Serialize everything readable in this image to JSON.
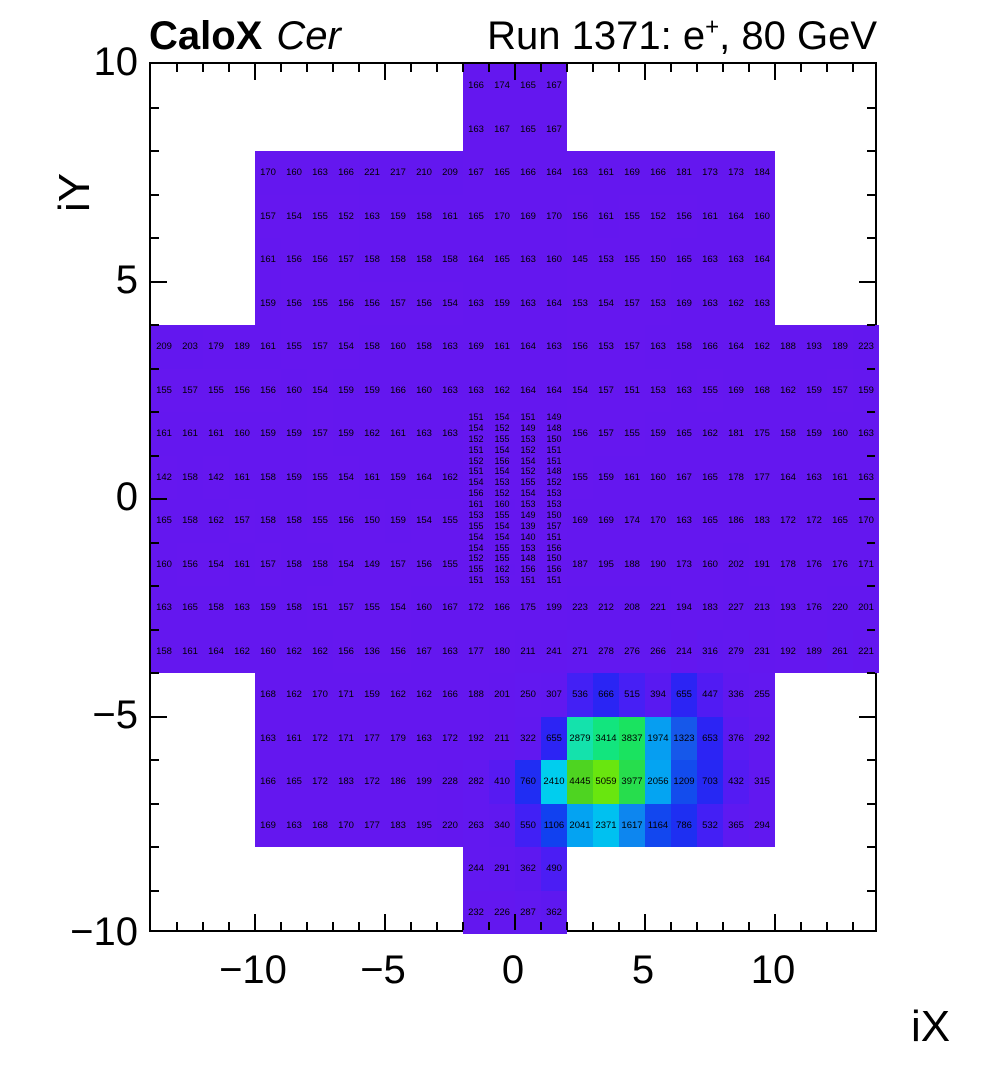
{
  "header": {
    "title_bold": "CaloX",
    "title_italic": "Cer",
    "run_label_prefix": "Run 1371: e",
    "run_label_sup": "+",
    "run_label_suffix": ", 80 GeV"
  },
  "axes": {
    "x_label": "iX",
    "y_label": "iY",
    "x_ticks": [
      {
        "v": -10,
        "t": "−10"
      },
      {
        "v": -5,
        "t": "−5"
      },
      {
        "v": 0,
        "t": "0"
      },
      {
        "v": 5,
        "t": "5"
      },
      {
        "v": 10,
        "t": "10"
      }
    ],
    "y_ticks": [
      {
        "v": 10,
        "t": "10"
      },
      {
        "v": 5,
        "t": "5"
      },
      {
        "v": 0,
        "t": "0"
      },
      {
        "v": -5,
        "t": "−5"
      },
      {
        "v": -10,
        "t": "−10"
      }
    ]
  },
  "chart_data": {
    "type": "heatmap",
    "title": "CaloX Cer — Run 1371: e+, 80 GeV",
    "xlabel": "iX",
    "ylabel": "iY",
    "xlim": [
      -14,
      14
    ],
    "ylim": [
      -10,
      10
    ],
    "grid": false,
    "z_min": 136,
    "z_max": 5059,
    "palette": [
      [
        136,
        "#6517ef"
      ],
      [
        350,
        "#6018f0"
      ],
      [
        470,
        "#4e1cf4"
      ],
      [
        560,
        "#3f21f5"
      ],
      [
        660,
        "#2b24f4"
      ],
      [
        800,
        "#1c30f2"
      ],
      [
        1110,
        "#1141f0"
      ],
      [
        1330,
        "#1659ea"
      ],
      [
        1620,
        "#0d86ef"
      ],
      [
        2060,
        "#04a4f2"
      ],
      [
        2380,
        "#00c2f0"
      ],
      [
        2430,
        "#00d6ec"
      ],
      [
        2890,
        "#14e2aa"
      ],
      [
        3420,
        "#12e57e"
      ],
      [
        3840,
        "#1ae360"
      ],
      [
        3980,
        "#27dd4d"
      ],
      [
        4450,
        "#4ed421"
      ],
      [
        5059,
        "#69e60f"
      ]
    ],
    "coarse_segments": [
      {
        "y": 9,
        "x0": -2,
        "values": [
          166,
          174,
          165,
          167
        ]
      },
      {
        "y": 8,
        "x0": -2,
        "values": [
          163,
          167,
          165,
          167
        ]
      },
      {
        "y": 7,
        "x0": -10,
        "values": [
          170,
          160,
          163,
          166,
          221,
          217,
          210,
          209,
          167,
          165,
          166,
          164,
          163,
          161,
          169,
          166,
          181,
          173,
          173,
          184
        ]
      },
      {
        "y": 6,
        "x0": -10,
        "values": [
          157,
          154,
          155,
          152,
          163,
          159,
          158,
          161,
          165,
          170,
          169,
          170,
          156,
          161,
          155,
          152,
          156,
          161,
          164,
          160
        ]
      },
      {
        "y": 5,
        "x0": -10,
        "values": [
          161,
          156,
          156,
          157,
          158,
          158,
          158,
          158,
          164,
          165,
          163,
          160,
          145,
          153,
          155,
          150,
          165,
          163,
          163,
          164
        ]
      },
      {
        "y": 4,
        "x0": -10,
        "values": [
          159,
          156,
          155,
          156,
          156,
          157,
          156,
          154,
          163,
          159,
          163,
          164,
          153,
          154,
          157,
          153,
          169,
          163,
          162,
          163
        ]
      },
      {
        "y": 3,
        "x0": -14,
        "values": [
          209,
          203,
          179,
          189,
          161,
          155,
          157,
          154,
          158,
          160,
          158,
          163,
          169,
          161,
          164,
          163,
          156,
          153,
          157,
          163,
          158,
          166,
          164,
          162,
          188,
          193,
          189,
          223
        ]
      },
      {
        "y": 2,
        "x0": -14,
        "values": [
          155,
          157,
          155,
          156,
          156,
          160,
          154,
          159,
          159,
          166,
          160,
          163,
          163,
          162,
          164,
          164,
          154,
          157,
          151,
          153,
          163,
          155,
          169,
          168,
          162,
          159,
          157,
          159
        ]
      },
      {
        "y": 1,
        "x0": -14,
        "values": [
          161,
          161,
          161,
          160,
          159,
          159,
          157,
          159,
          162,
          161,
          163,
          163
        ]
      },
      {
        "y": 1,
        "x0": 2,
        "values": [
          156,
          157,
          155,
          159,
          165,
          162,
          181,
          175,
          158,
          159,
          160,
          163
        ]
      },
      {
        "y": 0,
        "x0": -14,
        "values": [
          142,
          158,
          142,
          161,
          158,
          159,
          155,
          154,
          161,
          159,
          164,
          162
        ]
      },
      {
        "y": 0,
        "x0": 2,
        "values": [
          155,
          159,
          161,
          160,
          167,
          165,
          178,
          177,
          164,
          163,
          161,
          163
        ]
      },
      {
        "y": -1,
        "x0": -14,
        "values": [
          165,
          158,
          162,
          157,
          158,
          158,
          155,
          156,
          150,
          159,
          154,
          155
        ]
      },
      {
        "y": -1,
        "x0": 2,
        "values": [
          169,
          169,
          174,
          170,
          163,
          165,
          186,
          183,
          172,
          172,
          165,
          170
        ]
      },
      {
        "y": -2,
        "x0": -14,
        "values": [
          160,
          156,
          154,
          161,
          157,
          158,
          158,
          154,
          149,
          157,
          156,
          155
        ]
      },
      {
        "y": -2,
        "x0": 2,
        "values": [
          187,
          195,
          188,
          190,
          173,
          160,
          202,
          191,
          178,
          176,
          176,
          171
        ]
      },
      {
        "y": -3,
        "x0": -14,
        "values": [
          163,
          165,
          158,
          163,
          159,
          158,
          151,
          157,
          155,
          154,
          160,
          167,
          172,
          166,
          175,
          199,
          223,
          212,
          208,
          221,
          194,
          183,
          227,
          213,
          193,
          176,
          220,
          201
        ]
      },
      {
        "y": -4,
        "x0": -14,
        "values": [
          158,
          161,
          164,
          162,
          160,
          162,
          162,
          156,
          136,
          156,
          167,
          163,
          177,
          180,
          211,
          241,
          271,
          278,
          276,
          266,
          214,
          316,
          279,
          231,
          192,
          189,
          261,
          221
        ]
      },
      {
        "y": -5,
        "x0": -10,
        "values": [
          168,
          162,
          170,
          171,
          159,
          162,
          162,
          166,
          188,
          201,
          250,
          307,
          536,
          666,
          515,
          394,
          655,
          447,
          336,
          255
        ]
      },
      {
        "y": -6,
        "x0": -10,
        "values": [
          163,
          161,
          172,
          171,
          177,
          179,
          163,
          172,
          192,
          211,
          322,
          655,
          2879,
          3414,
          3837,
          1974,
          1323,
          653,
          376,
          292
        ]
      },
      {
        "y": -7,
        "x0": -10,
        "values": [
          166,
          165,
          172,
          183,
          172,
          186,
          199,
          228,
          282,
          410,
          760,
          2410,
          4445,
          5059,
          3977,
          2056,
          1209,
          703,
          432,
          315
        ]
      },
      {
        "y": -8,
        "x0": -10,
        "values": [
          169,
          163,
          168,
          170,
          177,
          183,
          195,
          220,
          263,
          340,
          550,
          1106,
          2041,
          2371,
          1617,
          1164,
          786,
          532,
          365,
          294
        ]
      },
      {
        "y": -9,
        "x0": -2,
        "values": [
          244,
          291,
          362,
          490
        ]
      },
      {
        "y": -10,
        "x0": -2,
        "values": [
          232,
          226,
          287,
          362
        ]
      }
    ],
    "fine_block": {
      "x0": -2,
      "y_top": 2,
      "cell_w": 1,
      "cell_h": 0.25,
      "rows": [
        [
          151,
          154,
          151,
          149
        ],
        [
          154,
          152,
          149,
          148
        ],
        [
          152,
          155,
          153,
          150
        ],
        [
          151,
          154,
          152,
          151
        ],
        [
          152,
          156,
          154,
          151
        ],
        [
          151,
          154,
          152,
          148
        ],
        [
          154,
          153,
          155,
          152
        ],
        [
          156,
          152,
          154,
          153
        ],
        [
          161,
          160,
          153,
          153
        ],
        [
          153,
          155,
          149,
          150
        ],
        [
          155,
          154,
          139,
          157
        ],
        [
          154,
          154,
          140,
          151
        ],
        [
          154,
          155,
          153,
          156
        ],
        [
          152,
          155,
          148,
          150
        ],
        [
          155,
          162,
          156,
          156
        ],
        [
          151,
          153,
          151,
          151
        ]
      ]
    }
  }
}
